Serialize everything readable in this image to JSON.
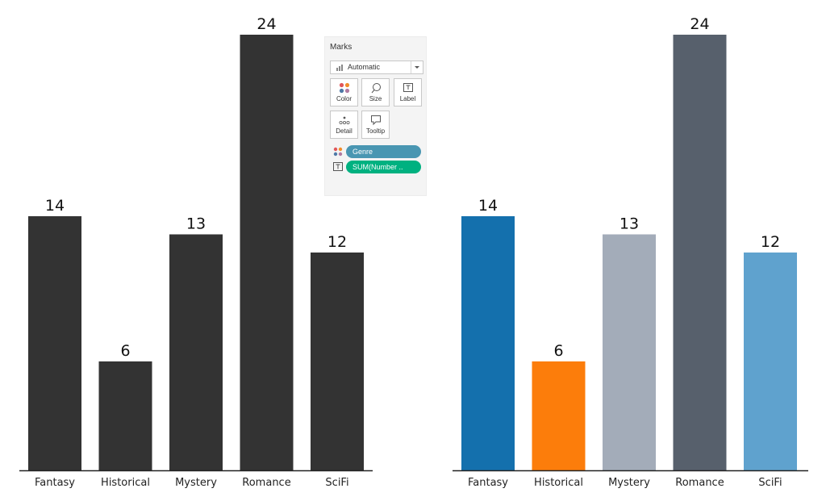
{
  "chart_data": [
    {
      "type": "bar",
      "categories": [
        "Fantasy",
        "Historical",
        "Mystery",
        "Romance",
        "SciFi"
      ],
      "values": [
        14,
        6,
        13,
        24,
        12
      ],
      "ylim": [
        0,
        24
      ],
      "colors": [
        "#333333",
        "#333333",
        "#333333",
        "#333333",
        "#333333"
      ],
      "data_labels": true,
      "grid": false,
      "title": "",
      "xlabel": "",
      "ylabel": ""
    },
    {
      "type": "bar",
      "categories": [
        "Fantasy",
        "Historical",
        "Mystery",
        "Romance",
        "SciFi"
      ],
      "values": [
        14,
        6,
        13,
        24,
        12
      ],
      "ylim": [
        0,
        24
      ],
      "colors": [
        "#1470ad",
        "#fc7d0b",
        "#a3acb9",
        "#57606c",
        "#5fa2ce"
      ],
      "data_labels": true,
      "grid": false,
      "title": "",
      "xlabel": "",
      "ylabel": ""
    }
  ],
  "marks_card": {
    "title": "Marks",
    "mark_type": "Automatic",
    "mark_type_icon": "bar-chart-icon",
    "buttons": {
      "color": "Color",
      "size": "Size",
      "label": "Label",
      "detail": "Detail",
      "tooltip": "Tooltip"
    },
    "pills": [
      {
        "icon": "color-dots-icon",
        "label": "Genre",
        "color": "#4996b2"
      },
      {
        "icon": "text-label-icon",
        "label": "SUM(Number ..",
        "color": "#00b180"
      }
    ]
  }
}
